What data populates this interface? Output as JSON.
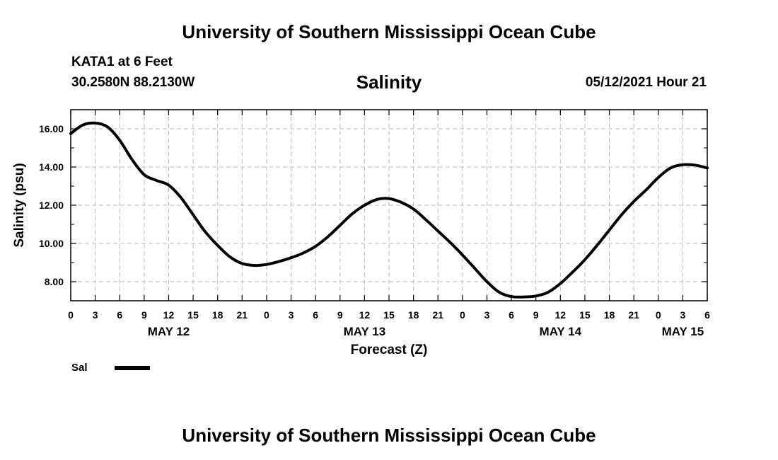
{
  "header": {
    "institution": "University of Southern Mississippi Ocean Cube",
    "station": "KATA1 at 6 Feet",
    "coordinates": "30.2580N  88.2130W",
    "variable": "Salinity",
    "datetime": "05/12/2021 Hour 21"
  },
  "footer": {
    "institution": "University of Southern Mississippi Ocean Cube"
  },
  "chart_data": {
    "type": "line",
    "title": "Salinity",
    "xlabel": "Forecast (Z)",
    "ylabel": "Salinity (psu)",
    "x_unit": "hours from May 12 00Z",
    "xlim": [
      0,
      78
    ],
    "ylim": [
      7.0,
      17.0
    ],
    "y_ticks": [
      8.0,
      10.0,
      12.0,
      14.0,
      16.0
    ],
    "y_tick_labels": [
      "8.00",
      "10.00",
      "12.00",
      "14.00",
      "16.00"
    ],
    "x_ticks": [
      0,
      3,
      6,
      9,
      12,
      15,
      18,
      21,
      24,
      27,
      30,
      33,
      36,
      39,
      42,
      45,
      48,
      51,
      54,
      57,
      60,
      63,
      66,
      69,
      72,
      75,
      78
    ],
    "x_tick_labels": [
      "0",
      "3",
      "6",
      "9",
      "12",
      "15",
      "18",
      "21",
      "0",
      "3",
      "6",
      "9",
      "12",
      "15",
      "18",
      "21",
      "0",
      "3",
      "6",
      "9",
      "12",
      "15",
      "18",
      "21",
      "0",
      "3",
      "6"
    ],
    "day_labels": [
      {
        "x": 12,
        "label": "MAY 12"
      },
      {
        "x": 36,
        "label": "MAY 13"
      },
      {
        "x": 60,
        "label": "MAY 14"
      },
      {
        "x": 75,
        "label": "MAY 15"
      }
    ],
    "grid": true,
    "legend_position": "bottom-left",
    "series": [
      {
        "name": "Sal",
        "color": "#000000",
        "x": [
          0,
          1.5,
          3,
          4.5,
          6,
          7.5,
          9,
          10.5,
          12,
          13.5,
          15,
          16.5,
          18,
          19.5,
          21,
          22.5,
          24,
          25.5,
          27,
          28.5,
          30,
          31.5,
          33,
          34.5,
          36,
          37.5,
          39,
          40.5,
          42,
          43.5,
          45,
          46.5,
          48,
          49.5,
          51,
          52.5,
          54,
          55.5,
          57,
          58.5,
          60,
          61.5,
          63,
          64.5,
          66,
          67.5,
          69,
          70.5,
          72,
          73.5,
          75,
          76.5,
          78
        ],
        "y": [
          15.75,
          16.2,
          16.3,
          16.1,
          15.4,
          14.4,
          13.6,
          13.3,
          13.05,
          12.4,
          11.5,
          10.6,
          9.9,
          9.3,
          8.95,
          8.85,
          8.9,
          9.05,
          9.25,
          9.5,
          9.85,
          10.35,
          10.95,
          11.55,
          12.0,
          12.3,
          12.35,
          12.15,
          11.8,
          11.25,
          10.65,
          10.05,
          9.4,
          8.7,
          8.0,
          7.45,
          7.22,
          7.2,
          7.25,
          7.45,
          7.9,
          8.5,
          9.15,
          9.9,
          10.7,
          11.5,
          12.2,
          12.8,
          13.45,
          13.95,
          14.12,
          14.1,
          13.95
        ]
      }
    ]
  }
}
